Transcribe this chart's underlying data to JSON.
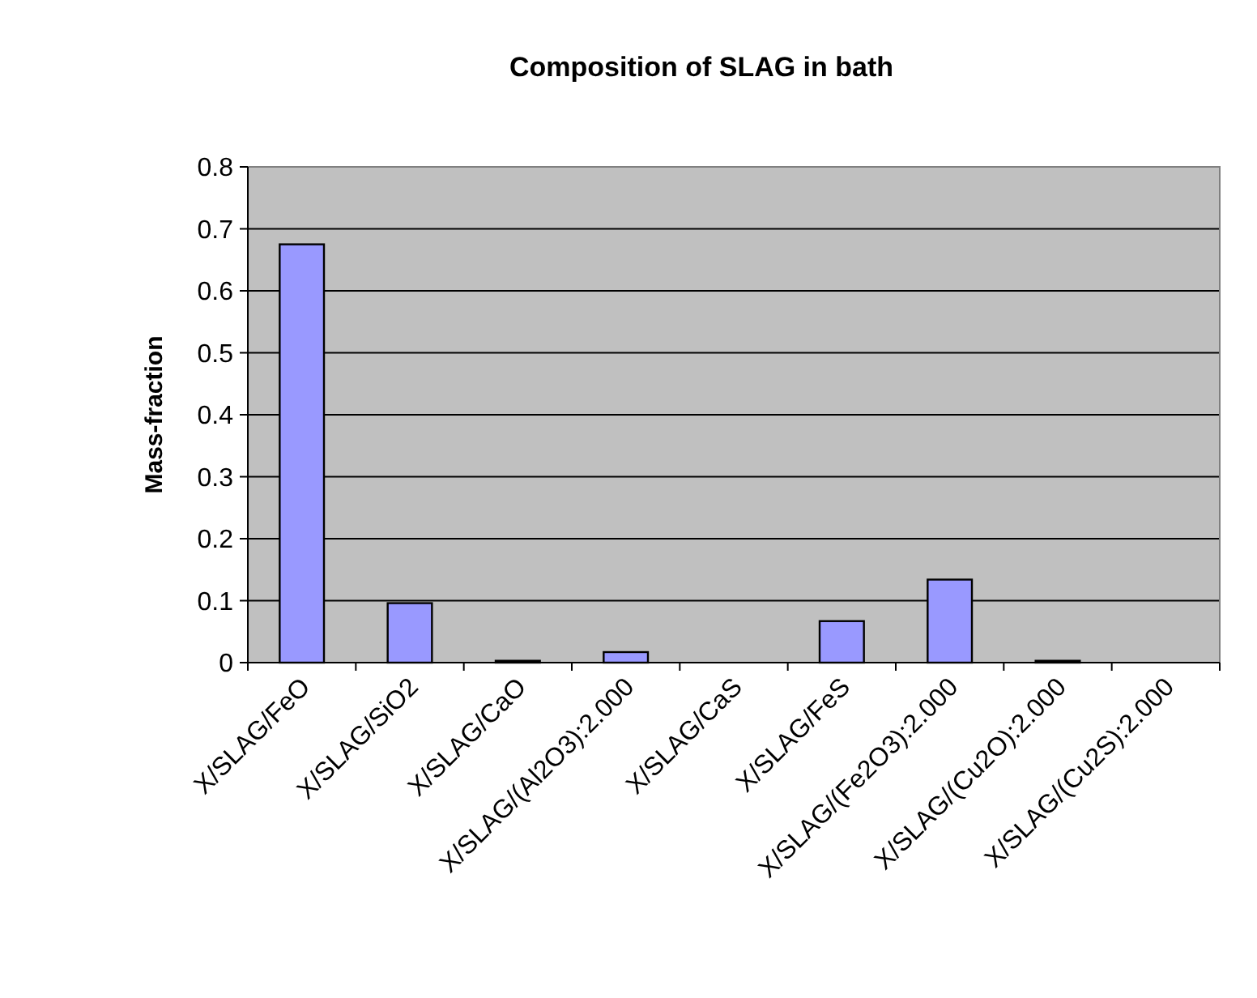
{
  "chart_data": {
    "type": "bar",
    "title": "Composition of SLAG in bath",
    "ylabel": "Mass-fraction",
    "categories": [
      "X/SLAG/FeO",
      "X/SLAG/SiO2",
      "X/SLAG/CaO",
      "X/SLAG/(Al2O3):2.000",
      "X/SLAG/CaS",
      "X/SLAG/FeS",
      "X/SLAG/(Fe2O3):2.000",
      "X/SLAG/(Cu2O):2.000",
      "X/SLAG/(Cu2S):2.000"
    ],
    "values": [
      0.675,
      0.096,
      0.003,
      0.017,
      0,
      0.067,
      0.134,
      0.003,
      0
    ],
    "color": "#9999ff",
    "ylim": [
      0,
      0.8
    ],
    "yticks": [
      0,
      0.1,
      0.2,
      0.3,
      0.4,
      0.5,
      0.6,
      0.7,
      0.8
    ],
    "grid": "y"
  }
}
